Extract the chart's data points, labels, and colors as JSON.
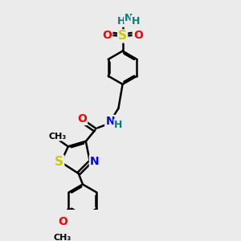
{
  "bg_color": "#ebebeb",
  "bond_color": "#000000",
  "bond_width": 1.8,
  "atom_colors": {
    "N": "#0000ff",
    "O": "#ff0000",
    "S": "#cccc00",
    "H_teal": "#008080",
    "C": "#000000"
  },
  "layout": {
    "xlim": [
      0,
      10
    ],
    "ylim": [
      0,
      10
    ]
  }
}
